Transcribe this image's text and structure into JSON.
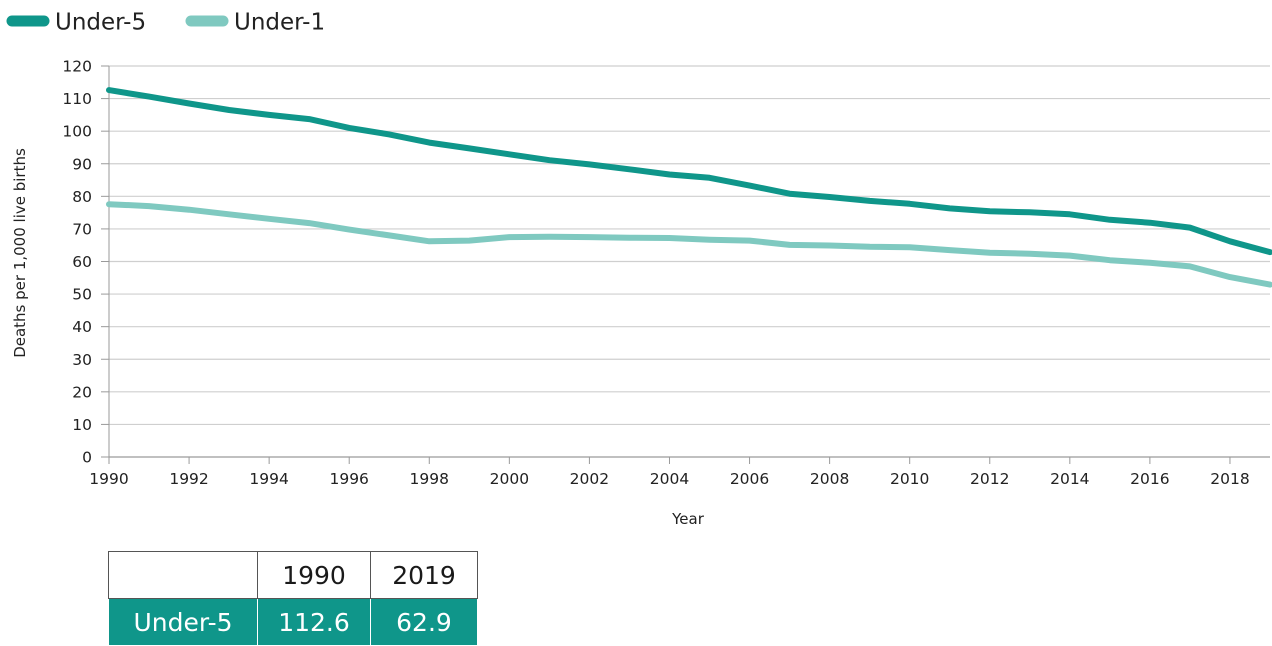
{
  "chart_data": {
    "type": "line",
    "xlabel": "Year",
    "ylabel": "Deaths per 1,000 live births",
    "xlim": [
      1990,
      2019
    ],
    "ylim": [
      0,
      120
    ],
    "x_ticks": [
      1990,
      1992,
      1994,
      1996,
      1998,
      2000,
      2002,
      2004,
      2006,
      2008,
      2010,
      2012,
      2014,
      2016,
      2018
    ],
    "y_ticks": [
      0,
      10,
      20,
      30,
      40,
      50,
      60,
      70,
      80,
      90,
      100,
      110,
      120
    ],
    "grid": "horizontal",
    "legend_position": "top-left",
    "x": [
      1990,
      1991,
      1992,
      1993,
      1994,
      1995,
      1996,
      1997,
      1998,
      1999,
      2000,
      2001,
      2002,
      2003,
      2004,
      2005,
      2006,
      2007,
      2008,
      2009,
      2010,
      2011,
      2012,
      2013,
      2014,
      2015,
      2016,
      2017,
      2018,
      2019
    ],
    "series": [
      {
        "name": "Under-5",
        "color": "#0f968a",
        "values": [
          112.6,
          110.6,
          108.5,
          106.5,
          105.0,
          103.7,
          101.0,
          99.0,
          96.5,
          94.7,
          92.9,
          91.1,
          89.8,
          88.3,
          86.7,
          85.7,
          83.3,
          80.8,
          79.8,
          78.6,
          77.7,
          76.3,
          75.4,
          75.1,
          74.5,
          72.8,
          71.9,
          70.4,
          66.2,
          62.9
        ]
      },
      {
        "name": "Under-1",
        "color": "#7fc9c0",
        "values": [
          77.6,
          77.0,
          75.9,
          74.5,
          73.1,
          71.8,
          69.8,
          68.0,
          66.2,
          66.4,
          67.5,
          67.6,
          67.5,
          67.3,
          67.2,
          66.7,
          66.4,
          65.1,
          64.9,
          64.5,
          64.4,
          63.5,
          62.7,
          62.4,
          61.8,
          60.4,
          59.6,
          58.5,
          55.2,
          52.9
        ]
      }
    ]
  },
  "summary_table": {
    "header": [
      "",
      "1990",
      "2019"
    ],
    "rows": [
      [
        "Under-5",
        "112.6",
        "62.9"
      ]
    ]
  }
}
